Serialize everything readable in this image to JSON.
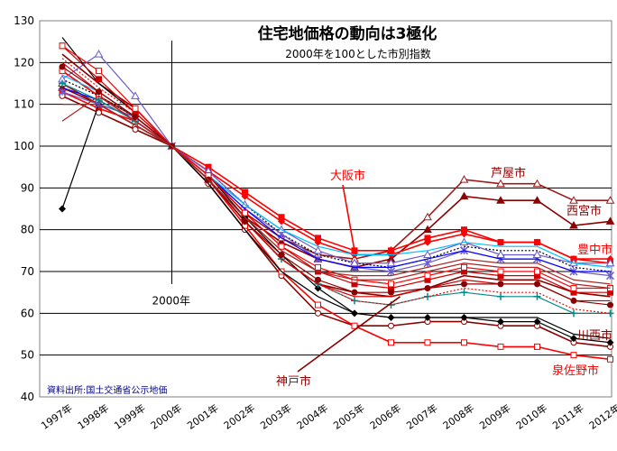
{
  "chart_data": {
    "type": "line",
    "title": "住宅地価格の動向は3極化",
    "subtitle": "2000年を100とした市別指数",
    "source": "資料出所:国土交通省公示地価",
    "ylim": [
      40,
      130
    ],
    "yticks": [
      40,
      50,
      60,
      70,
      80,
      90,
      100,
      110,
      120,
      130
    ],
    "x": [
      "1997年",
      "1998年",
      "1999年",
      "2000年",
      "2001年",
      "2002年",
      "2003年",
      "2004年",
      "2005年",
      "2006年",
      "2007年",
      "2008年",
      "2009年",
      "2010年",
      "2011年",
      "2012年"
    ],
    "annotation": "2000年",
    "grid": true,
    "legend": "none",
    "labeled_cities": [
      {
        "name": "大阪市",
        "color": "#ff0000"
      },
      {
        "name": "芦屋市",
        "color": "#8b0000"
      },
      {
        "name": "西宮市",
        "color": "#8b0000"
      },
      {
        "name": "豊中市",
        "color": "#ff0000"
      },
      {
        "name": "川西市",
        "color": "#8b0000"
      },
      {
        "name": "泉佐野市",
        "color": "#ff0000"
      },
      {
        "name": "神戸市",
        "color": "#8b0000"
      }
    ],
    "series": [
      {
        "name": "芦屋市",
        "color": "#8b0000",
        "marker": "triangle",
        "values": [
          114,
          110,
          105,
          100,
          92,
          83,
          77,
          73,
          71,
          73,
          80,
          88,
          87,
          87,
          81,
          82
        ]
      },
      {
        "name": "西宮市",
        "color": "#9b1a1a",
        "marker": "triangle-open",
        "values": [
          115,
          110,
          105,
          100,
          93,
          84,
          78,
          74,
          73,
          75,
          83,
          92,
          91,
          91,
          87,
          87
        ]
      },
      {
        "name": "大阪市",
        "color": "#ff0000",
        "marker": "square",
        "values": [
          113,
          109,
          106,
          100,
          95,
          89,
          83,
          78,
          75,
          75,
          78,
          80,
          77,
          77,
          73,
          72
        ]
      },
      {
        "name": "豊中市",
        "color": "#ff0000",
        "marker": "diamond",
        "values": [
          118,
          112,
          107,
          100,
          94,
          88,
          82,
          77,
          74,
          74,
          77,
          79,
          77,
          77,
          73,
          73
        ]
      },
      {
        "name": "川西市",
        "color": "#8b0000",
        "marker": "circle-open",
        "values": [
          112,
          108,
          104,
          100,
          91,
          80,
          69,
          60,
          57,
          57,
          58,
          58,
          57,
          57,
          53,
          52
        ]
      },
      {
        "name": "泉佐野市",
        "color": "#ff0000",
        "marker": "square-open",
        "values": [
          118,
          112,
          106,
          100,
          92,
          81,
          70,
          62,
          57,
          53,
          53,
          53,
          52,
          52,
          50,
          49
        ]
      },
      {
        "name": "神戸市",
        "color": "#8b0000",
        "marker": "none",
        "values": [
          122,
          115,
          109,
          100,
          92,
          82,
          73,
          67,
          65,
          64,
          66,
          69,
          68,
          68,
          65,
          64
        ]
      },
      {
        "name": "",
        "color": "#000000",
        "marker": "diamond",
        "values": [
          85,
          110,
          107,
          100,
          93,
          83,
          74,
          66,
          60,
          59,
          59,
          59,
          58,
          58,
          54,
          53
        ]
      },
      {
        "name": "",
        "color": "#000000",
        "marker": "none",
        "values": [
          126,
          115,
          108,
          100,
          91,
          80,
          70,
          64,
          60,
          59,
          59,
          59,
          59,
          59,
          55,
          54
        ]
      },
      {
        "name": "",
        "color": "#000000",
        "marker": "dotted",
        "values": [
          116,
          112,
          107,
          100,
          94,
          86,
          79,
          74,
          72,
          71,
          73,
          76,
          75,
          75,
          71,
          70
        ]
      },
      {
        "name": "",
        "color": "#6a5acd",
        "marker": "asterisk",
        "values": [
          113,
          110,
          107,
          100,
          93,
          85,
          79,
          73,
          71,
          70,
          72,
          75,
          73,
          73,
          70,
          69
        ]
      },
      {
        "name": "",
        "color": "#6a5acd",
        "marker": "triangle-open",
        "values": [
          116,
          122,
          112,
          100,
          94,
          86,
          80,
          75,
          72,
          72,
          74,
          77,
          74,
          74,
          72,
          72
        ]
      },
      {
        "name": "",
        "color": "#0000ff",
        "marker": "none",
        "values": [
          114,
          111,
          106,
          100,
          93,
          85,
          78,
          73,
          71,
          71,
          73,
          75,
          73,
          73,
          70,
          70
        ]
      },
      {
        "name": "",
        "color": "#008b8b",
        "marker": "plus",
        "values": [
          115,
          111,
          106,
          100,
          92,
          82,
          73,
          67,
          63,
          62,
          64,
          65,
          64,
          64,
          60,
          60
        ]
      },
      {
        "name": "",
        "color": "#00bfff",
        "marker": "none",
        "values": [
          117,
          113,
          107,
          100,
          93,
          86,
          80,
          76,
          74,
          74,
          75,
          77,
          76,
          76,
          72,
          71
        ]
      },
      {
        "name": "",
        "color": "#cc0000",
        "marker": "none",
        "values": [
          120,
          113,
          107,
          100,
          92,
          82,
          73,
          67,
          64,
          64,
          66,
          68,
          67,
          67,
          63,
          63
        ]
      },
      {
        "name": "",
        "color": "#cc0000",
        "marker": "square",
        "values": [
          124,
          116,
          108,
          100,
          93,
          84,
          76,
          70,
          67,
          66,
          68,
          70,
          69,
          69,
          65,
          65
        ]
      },
      {
        "name": "",
        "color": "#ff0000",
        "marker": "dotted",
        "values": [
          121,
          114,
          108,
          100,
          92,
          82,
          73,
          67,
          63,
          62,
          64,
          66,
          65,
          65,
          61,
          60
        ]
      },
      {
        "name": "",
        "color": "#ff0000",
        "marker": "square-open",
        "values": [
          124,
          118,
          109,
          100,
          93,
          84,
          76,
          71,
          68,
          67,
          69,
          71,
          70,
          70,
          66,
          66
        ]
      },
      {
        "name": "",
        "color": "#8b0000",
        "marker": "circle",
        "values": [
          119,
          113,
          107,
          100,
          92,
          82,
          74,
          68,
          65,
          65,
          66,
          67,
          67,
          67,
          63,
          62
        ]
      },
      {
        "name": "",
        "color": "#b22222",
        "marker": "none",
        "values": [
          106,
          112,
          106,
          100,
          92,
          83,
          75,
          70,
          68,
          68,
          70,
          72,
          71,
          71,
          67,
          66
        ]
      },
      {
        "name": "",
        "color": "#a52a2a",
        "marker": "none",
        "values": [
          110,
          110,
          105,
          100,
          92,
          83,
          75,
          70,
          69,
          69,
          71,
          73,
          72,
          72,
          68,
          67
        ]
      }
    ]
  }
}
